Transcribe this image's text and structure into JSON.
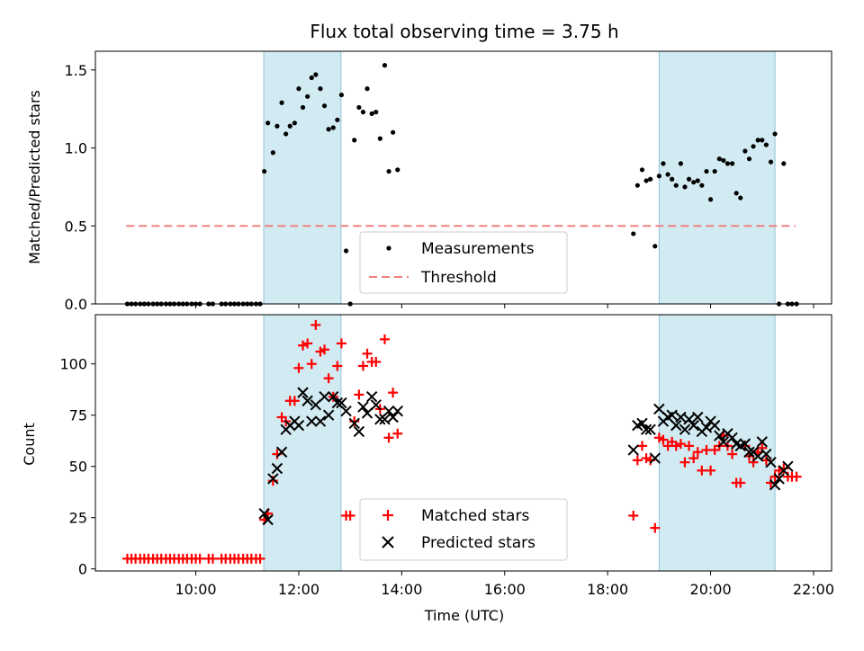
{
  "figure_title": "Flux total observing time = 3.75 h",
  "x_axis_label": "Time (UTC)",
  "x_tick_labels": [
    "10:00",
    "12:00",
    "14:00",
    "16:00",
    "18:00",
    "20:00",
    "22:00"
  ],
  "colors": {
    "measurement": "#000000",
    "threshold": "#f08080",
    "matched": "#ff0000",
    "predicted": "#000000",
    "shade": "#add8e6"
  },
  "chart_data": [
    {
      "type": "scatter",
      "panel": "top",
      "title": "Flux total observing time = 3.75 h",
      "xlabel": "",
      "ylabel": "Matched/Predicted stars",
      "x_unit": "hours UTC",
      "xlim": [
        8.05,
        22.35
      ],
      "ylim": [
        0,
        1.62
      ],
      "y_ticks": [
        "0.0",
        "0.5",
        "1.0",
        "1.5"
      ],
      "shaded_intervals": [
        [
          11.32,
          12.82
        ],
        [
          19.0,
          21.25
        ]
      ],
      "legend": {
        "position": "lower center",
        "entries": [
          "Measurements",
          "Threshold"
        ]
      },
      "threshold": {
        "name": "Threshold",
        "y": 0.5,
        "x_range": [
          8.65,
          21.65
        ]
      },
      "series": [
        {
          "name": "Measurements",
          "x": [
            8.67,
            8.75,
            8.83,
            8.92,
            9.0,
            9.08,
            9.17,
            9.25,
            9.33,
            9.42,
            9.5,
            9.58,
            9.67,
            9.75,
            9.83,
            9.92,
            10.0,
            10.08,
            10.25,
            10.33,
            10.5,
            10.58,
            10.67,
            10.75,
            10.83,
            10.92,
            11.0,
            11.08,
            11.17,
            11.25,
            11.33,
            11.4,
            11.5,
            11.58,
            11.67,
            11.75,
            11.83,
            11.92,
            12.0,
            12.08,
            12.17,
            12.25,
            12.33,
            12.42,
            12.5,
            12.58,
            12.67,
            12.75,
            12.83,
            12.92,
            13.0,
            13.08,
            13.17,
            13.25,
            13.33,
            13.42,
            13.5,
            13.58,
            13.67,
            13.75,
            13.83,
            13.92,
            18.5,
            18.58,
            18.67,
            18.75,
            18.83,
            18.92,
            19.0,
            19.08,
            19.17,
            19.25,
            19.33,
            19.42,
            19.5,
            19.58,
            19.67,
            19.75,
            19.83,
            19.92,
            20.0,
            20.08,
            20.17,
            20.25,
            20.33,
            20.42,
            20.5,
            20.58,
            20.67,
            20.75,
            20.83,
            20.92,
            21.0,
            21.08,
            21.17,
            21.25,
            21.33,
            21.42,
            21.5,
            21.58,
            21.67
          ],
          "y": [
            0.0,
            0.0,
            0.0,
            0.0,
            0.0,
            0.0,
            0.0,
            0.0,
            0.0,
            0.0,
            0.0,
            0.0,
            0.0,
            0.0,
            0.0,
            0.0,
            0.0,
            0.0,
            0.0,
            0.0,
            0.0,
            0.0,
            0.0,
            0.0,
            0.0,
            0.0,
            0.0,
            0.0,
            0.0,
            0.0,
            0.85,
            1.16,
            0.97,
            1.14,
            1.29,
            1.09,
            1.14,
            1.16,
            1.38,
            1.26,
            1.33,
            1.45,
            1.47,
            1.38,
            1.27,
            1.12,
            1.13,
            1.18,
            1.34,
            0.34,
            0.0,
            1.05,
            1.26,
            1.23,
            1.38,
            1.22,
            1.23,
            1.06,
            1.53,
            0.85,
            1.1,
            0.86,
            0.45,
            0.76,
            0.86,
            0.79,
            0.8,
            0.37,
            0.82,
            0.9,
            0.83,
            0.8,
            0.76,
            0.9,
            0.75,
            0.8,
            0.78,
            0.79,
            0.76,
            0.85,
            0.67,
            0.85,
            0.93,
            0.92,
            0.9,
            0.9,
            0.71,
            0.68,
            0.98,
            0.93,
            1.01,
            1.05,
            1.05,
            1.02,
            0.91,
            1.09,
            0.0,
            0.9,
            0.0,
            0.0,
            0.0
          ]
        }
      ]
    },
    {
      "type": "scatter",
      "panel": "bottom",
      "title": "",
      "xlabel": "Time (UTC)",
      "ylabel": "Count",
      "x_unit": "hours UTC",
      "xlim": [
        8.05,
        22.35
      ],
      "ylim": [
        -1,
        124
      ],
      "y_ticks": [
        "0",
        "25",
        "50",
        "75",
        "100"
      ],
      "shaded_intervals": [
        [
          11.32,
          12.82
        ],
        [
          19.0,
          21.25
        ]
      ],
      "legend": {
        "position": "lower center",
        "entries": [
          "Matched stars",
          "Predicted stars"
        ]
      },
      "series": [
        {
          "name": "Matched stars",
          "marker": "+",
          "x": [
            8.67,
            8.75,
            8.83,
            8.92,
            9.0,
            9.08,
            9.17,
            9.25,
            9.33,
            9.42,
            9.5,
            9.58,
            9.67,
            9.75,
            9.83,
            9.92,
            10.0,
            10.08,
            10.25,
            10.33,
            10.5,
            10.58,
            10.67,
            10.75,
            10.83,
            10.92,
            11.0,
            11.08,
            11.17,
            11.25,
            11.33,
            11.4,
            11.5,
            11.58,
            11.67,
            11.75,
            11.83,
            11.92,
            12.0,
            12.08,
            12.17,
            12.25,
            12.33,
            12.42,
            12.5,
            12.58,
            12.67,
            12.75,
            12.83,
            12.92,
            13.0,
            13.08,
            13.17,
            13.25,
            13.33,
            13.42,
            13.5,
            13.58,
            13.67,
            13.75,
            13.83,
            13.92,
            18.5,
            18.58,
            18.67,
            18.75,
            18.83,
            18.92,
            19.0,
            19.08,
            19.17,
            19.25,
            19.33,
            19.42,
            19.5,
            19.58,
            19.67,
            19.75,
            19.83,
            19.92,
            20.0,
            20.08,
            20.17,
            20.25,
            20.33,
            20.42,
            20.5,
            20.58,
            20.67,
            20.75,
            20.83,
            20.92,
            21.0,
            21.08,
            21.17,
            21.25,
            21.33,
            21.42,
            21.5,
            21.58,
            21.67
          ],
          "y": [
            5,
            5,
            5,
            5,
            5,
            5,
            5,
            5,
            5,
            5,
            5,
            5,
            5,
            5,
            5,
            5,
            5,
            5,
            5,
            5,
            5,
            5,
            5,
            5,
            5,
            5,
            5,
            5,
            5,
            5,
            24,
            27,
            43,
            56,
            74,
            72,
            82,
            82,
            98,
            109,
            110,
            100,
            119,
            106,
            107,
            93,
            84,
            99,
            110,
            26,
            26,
            72,
            85,
            99,
            105,
            101,
            101,
            78,
            112,
            64,
            86,
            66,
            26,
            53,
            60,
            54,
            53,
            20,
            64,
            63,
            60,
            62,
            60,
            61,
            52,
            60,
            54,
            57,
            48,
            58,
            48,
            58,
            60,
            65,
            60,
            56,
            42,
            42,
            60,
            55,
            52,
            57,
            59,
            53,
            42,
            45,
            48,
            49,
            45,
            45,
            45
          ]
        },
        {
          "name": "Predicted stars",
          "marker": "x",
          "x": [
            11.33,
            11.4,
            11.5,
            11.58,
            11.67,
            11.75,
            11.83,
            11.92,
            12.0,
            12.08,
            12.17,
            12.25,
            12.33,
            12.42,
            12.5,
            12.58,
            12.67,
            12.75,
            12.83,
            12.92,
            13.08,
            13.17,
            13.25,
            13.33,
            13.42,
            13.5,
            13.58,
            13.67,
            13.75,
            13.83,
            13.92,
            18.5,
            18.58,
            18.67,
            18.75,
            18.83,
            18.92,
            19.0,
            19.08,
            19.17,
            19.25,
            19.33,
            19.42,
            19.5,
            19.58,
            19.67,
            19.75,
            19.83,
            19.92,
            20.0,
            20.08,
            20.17,
            20.25,
            20.33,
            20.42,
            20.5,
            20.58,
            20.67,
            20.75,
            20.83,
            20.92,
            21.0,
            21.08,
            21.17,
            21.25,
            21.33,
            21.42,
            21.5
          ],
          "y": [
            27,
            24,
            44,
            49,
            57,
            68,
            70,
            72,
            70,
            86,
            82,
            72,
            80,
            72,
            84,
            75,
            84,
            81,
            81,
            77,
            71,
            67,
            79,
            76,
            84,
            80,
            73,
            73,
            77,
            74,
            77,
            58,
            70,
            71,
            68,
            68,
            54,
            78,
            72,
            74,
            75,
            70,
            74,
            68,
            73,
            70,
            74,
            67,
            69,
            72,
            70,
            65,
            62,
            66,
            64,
            61,
            60,
            61,
            57,
            57,
            55,
            62,
            56,
            52,
            41,
            44,
            48,
            50
          ]
        }
      ]
    }
  ]
}
